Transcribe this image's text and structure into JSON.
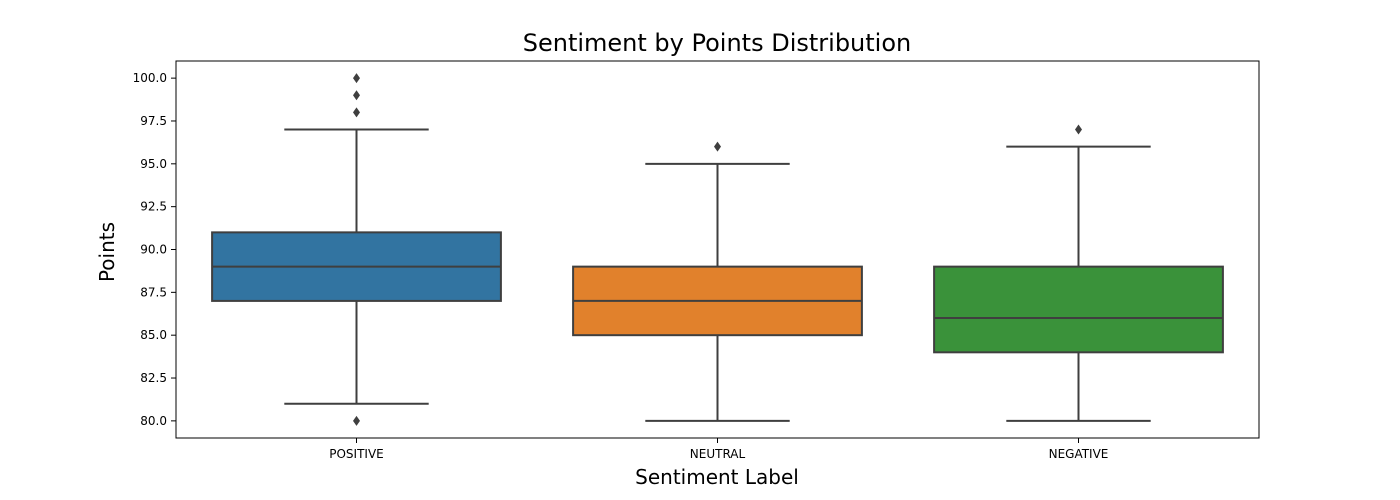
{
  "chart_data": {
    "type": "box",
    "title": "Sentiment by Points Distribution",
    "xlabel": "Sentiment Label",
    "ylabel": "Points",
    "categories": [
      "POSITIVE",
      "NEUTRAL",
      "NEGATIVE"
    ],
    "ylim": [
      79,
      101
    ],
    "y_ticks": [
      "80.0",
      "82.5",
      "85.0",
      "87.5",
      "90.0",
      "92.5",
      "95.0",
      "97.5",
      "100.0"
    ],
    "grid": false,
    "legend": "none",
    "series": [
      {
        "category": "POSITIVE",
        "color": "#3274a1",
        "whisker_low": 81,
        "q1": 87,
        "median": 89,
        "q3": 91,
        "whisker_high": 97,
        "outliers": [
          80,
          98,
          99,
          100
        ]
      },
      {
        "category": "NEUTRAL",
        "color": "#e1812c",
        "whisker_low": 80,
        "q1": 85,
        "median": 87,
        "q3": 89,
        "whisker_high": 95,
        "outliers": [
          96
        ]
      },
      {
        "category": "NEGATIVE",
        "color": "#3a923a",
        "whisker_low": 80,
        "q1": 84,
        "median": 86,
        "q3": 89,
        "whisker_high": 96,
        "outliers": [
          97
        ]
      }
    ]
  }
}
